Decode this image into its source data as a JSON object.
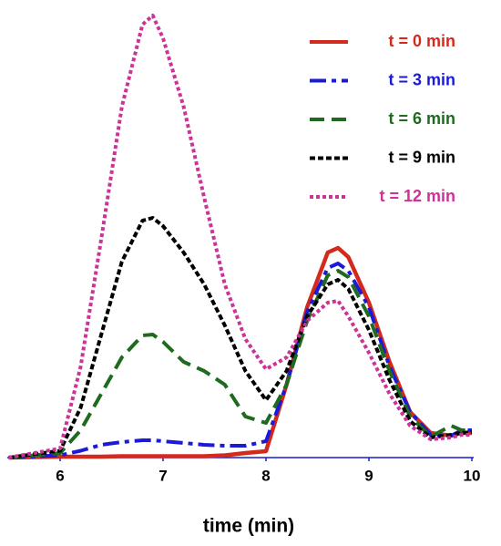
{
  "chart_data": {
    "type": "line",
    "x_label": "time (min)",
    "x": [
      5.5,
      6,
      6.2,
      6.4,
      6.6,
      6.8,
      6.9,
      7,
      7.2,
      7.4,
      7.6,
      7.8,
      8,
      8.2,
      8.4,
      8.6,
      8.7,
      8.8,
      9,
      9.2,
      9.4,
      9.6,
      9.8,
      9.9,
      10
    ],
    "series": [
      {
        "name": "t = 0 min",
        "color": "#d42a1e",
        "dash": "solid",
        "values": [
          0,
          0.2,
          0.2,
          0.2,
          0.3,
          0.3,
          0.3,
          0.3,
          0.3,
          0.3,
          0.5,
          1,
          1.4,
          16,
          33,
          45,
          46,
          44,
          34,
          21,
          10,
          5.4,
          4.8,
          5.4,
          5.4
        ]
      },
      {
        "name": "t = 3 min",
        "color": "#1a1ad8",
        "dash": "dashdot",
        "values": [
          0,
          0.5,
          1.5,
          2.8,
          3.4,
          3.8,
          3.8,
          3.6,
          3.2,
          2.8,
          2.6,
          2.6,
          3.6,
          16,
          32,
          41.6,
          42.6,
          41,
          33,
          20,
          10,
          5,
          4.8,
          6,
          6
        ]
      },
      {
        "name": "t = 6 min",
        "color": "#1e6a1e",
        "dash": "dashed",
        "values": [
          0,
          1,
          6,
          14,
          22,
          26.8,
          27,
          25.4,
          21,
          19,
          16,
          9,
          7.6,
          16,
          30,
          40,
          41,
          39.6,
          31,
          19,
          9,
          4.6,
          7,
          6,
          6
        ]
      },
      {
        "name": "t = 9 min",
        "color": "#000000",
        "dash": "shortdot",
        "values": [
          0,
          1.5,
          11,
          27,
          43,
          52,
          52.6,
          50.8,
          45,
          38,
          29,
          19,
          12.6,
          19,
          31,
          38,
          39,
          37,
          28,
          17,
          8,
          4.4,
          5,
          5.4,
          5.6
        ]
      },
      {
        "name": "t = 12 min",
        "color": "#cc3399",
        "dash": "dotted",
        "values": [
          0,
          2,
          20,
          48,
          77,
          95,
          97,
          92,
          77,
          57,
          38,
          26,
          19.4,
          22,
          30,
          34,
          34.4,
          31,
          23,
          14,
          7,
          4,
          4.4,
          5,
          5
        ]
      }
    ],
    "xlim": [
      5.5,
      10
    ],
    "xticks": [
      6,
      7,
      8,
      9,
      10
    ],
    "ylim": [
      0,
      100
    ],
    "axis_color": "#1a1ad8",
    "legend": "upper right"
  }
}
